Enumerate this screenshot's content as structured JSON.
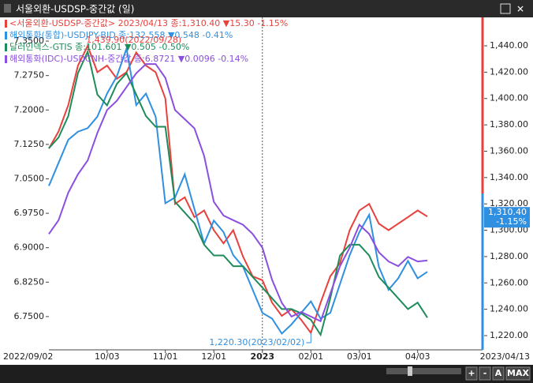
{
  "window_title": "서울외환-USDSP-중간값 (일)",
  "chart_data": {
    "type": "line",
    "categories": [
      "2022/09/02",
      null,
      null,
      null,
      null,
      null,
      "10/03",
      null,
      null,
      null,
      null,
      null,
      "11/01",
      null,
      null,
      null,
      null,
      "12/01",
      null,
      null,
      null,
      null,
      "2023",
      null,
      null,
      null,
      null,
      "02/01",
      null,
      null,
      null,
      null,
      "03/01",
      null,
      null,
      null,
      null,
      null,
      "04/03",
      "2023/04/13"
    ],
    "ylim": [
      6.6776,
      7.4017
    ],
    "yticks": [
      {
        "value": 7.35,
        "label": "7.3500"
      },
      {
        "value": 7.275,
        "label": "7.2750"
      },
      {
        "value": 7.2,
        "label": "7.2000"
      },
      {
        "value": 7.125,
        "label": "7.1250"
      },
      {
        "value": 7.05,
        "label": "7.0500"
      },
      {
        "value": 6.975,
        "label": "6.9750"
      },
      {
        "value": 6.9,
        "label": "6.9000"
      },
      {
        "value": 6.825,
        "label": "6.8250"
      },
      {
        "value": 6.75,
        "label": "6.7500"
      }
    ],
    "y2lim": [
      1209.2,
      1461.6
    ],
    "y2ticks": [
      {
        "value": 1440,
        "label": "1,440.00"
      },
      {
        "value": 1420,
        "label": "1,420.00"
      },
      {
        "value": 1400,
        "label": "1,400.00"
      },
      {
        "value": 1380,
        "label": "1,380.00"
      },
      {
        "value": 1360,
        "label": "1,360.00"
      },
      {
        "value": 1340,
        "label": "1,340.00"
      },
      {
        "value": 1320,
        "label": "1,320.00"
      },
      {
        "value": 1300,
        "label": "1,300.00"
      },
      {
        "value": 1280,
        "label": "1,280.00"
      },
      {
        "value": 1260,
        "label": "1,260.00"
      },
      {
        "value": 1240,
        "label": "1,240.00"
      },
      {
        "value": 1220,
        "label": "1,220.00"
      }
    ],
    "series": [
      {
        "name": "<서울외환-USDSP-중간값> 2023/04/13 종:1,310.40  ▼15.30  -1.15%",
        "color": "#e8413c",
        "axis": "y2",
        "values": [
          1362,
          1375,
          1395,
          1425,
          1440,
          1420,
          1425,
          1415,
          1420,
          1435,
          1425,
          1420,
          1400,
          1320,
          1325,
          1310,
          1315,
          1300,
          1290,
          1300,
          1280,
          1265,
          1262,
          1245,
          1235,
          1240,
          1232,
          1222,
          1245,
          1265,
          1275,
          1300,
          1315,
          1320,
          1305,
          1300,
          1305,
          1310,
          1315,
          1310.4
        ]
      },
      {
        "name": "해외통화(통합)-USDJPY-BID 종:132.558  ▼0.548  -0.41%",
        "color": "#2f8fe0",
        "ylim": [
          125.8,
          154.6
        ],
        "values": [
          140,
          142,
          144,
          144.7,
          145,
          146,
          148,
          149.5,
          151.9,
          147,
          148,
          146,
          138.5,
          139,
          141,
          138,
          135,
          137,
          136,
          134,
          133,
          131,
          129,
          128.5,
          127.2,
          128,
          129,
          130,
          128.5,
          129,
          131.5,
          134,
          136,
          137.5,
          133,
          131,
          132,
          133.5,
          132,
          132.558
        ]
      },
      {
        "name": "달러인덱스-GTIS 종:101.601  ▼0.505  -0.50%",
        "color": "#1e8c5a",
        "ylim": [
          100.1,
          115.6
        ],
        "values": [
          109.5,
          110,
          111,
          113,
          114,
          112,
          111.5,
          112.5,
          113,
          112,
          111,
          110.5,
          110.5,
          107,
          106.5,
          106,
          105,
          104.5,
          104.5,
          104,
          104,
          103.5,
          103,
          102.5,
          102,
          102,
          101.8,
          101.5,
          100.8,
          102.5,
          104.5,
          105,
          105,
          104.5,
          103.5,
          103,
          102.5,
          102,
          102.3,
          101.601
        ]
      },
      {
        "name": "해외통화(IDC)-USDCNH-중간값 종:6.8721  ▼0.0096  -0.14%",
        "color": "#8a4fe0",
        "values": [
          6.93,
          6.96,
          7.02,
          7.06,
          7.09,
          7.15,
          7.2,
          7.22,
          7.25,
          7.28,
          7.3,
          7.3,
          7.27,
          7.2,
          7.18,
          7.16,
          7.1,
          7.0,
          6.97,
          6.96,
          6.95,
          6.93,
          6.9,
          6.83,
          6.78,
          6.75,
          6.76,
          6.75,
          6.74,
          6.8,
          6.86,
          6.9,
          6.95,
          6.93,
          6.89,
          6.87,
          6.86,
          6.88,
          6.87,
          6.8721
        ]
      }
    ],
    "annotations": [
      "1,439.90(2022/09/28)",
      "1,220.30(2023/02/02)"
    ],
    "value_box": [
      "1,310.40",
      "-1.15%"
    ]
  },
  "buttons": [
    "+",
    "-",
    "A",
    "MAX"
  ]
}
